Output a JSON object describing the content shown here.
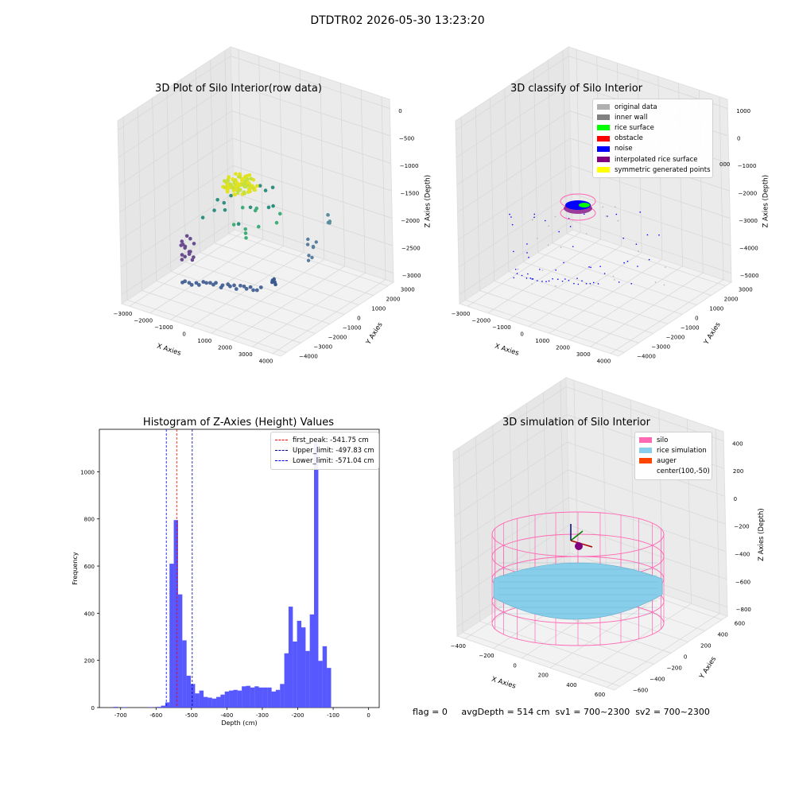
{
  "suptitle": "DTDTR02 2026-05-30 13:23:20",
  "footer": "flag = 0     avgDepth = 514 cm  sv1 = 700~2300  sv2 = 700~2300",
  "colors": {
    "hist_bar": "#4f4fff",
    "first_peak": "#ff0000",
    "upper_limit": "#00008b",
    "lower_limit": "#0000ff",
    "original": "#b0b0b0",
    "inner_wall": "#808080",
    "rice_surface": "#00ff00",
    "obstacle": "#ff0000",
    "noise": "#0000ff",
    "interpolated": "#800080",
    "symmetric": "#ffff00",
    "silo": "#ff69b4",
    "rice_sim": "#87ceeb",
    "auger": "#ff4500"
  },
  "chart_data": [
    {
      "type": "scatter",
      "title": "3D Plot of Silo Interior(row data)",
      "xlabel": "X Axies",
      "ylabel": "Y Axies",
      "zlabel": "Z Axies (Depth)",
      "xticks": [
        "−3000",
        "−2000",
        "−1000",
        "0",
        "1000",
        "2000",
        "3000",
        "4000"
      ],
      "yticks": [
        "3000",
        "2000",
        "1000",
        "0",
        "−1000",
        "−2000",
        "−3000",
        "−4000"
      ],
      "zticks": [
        "0",
        "−500",
        "−1000",
        "−1500",
        "−2000",
        "−2500",
        "−3000"
      ],
      "grid": true
    },
    {
      "type": "scatter",
      "title": "3D classify of Silo Interior",
      "xlabel": "X Axies",
      "ylabel": "Y Axies",
      "zlabel": "Z Axies (Depth)",
      "xticks": [
        "−3000",
        "−2000",
        "−1000",
        "0",
        "1000",
        "2000",
        "3000",
        "4000"
      ],
      "yticks": [
        "3000",
        "2000",
        "1000",
        "0",
        "−1000",
        "−2000",
        "−3000",
        "−4000"
      ],
      "zticks": [
        "1000",
        "0",
        "−1000",
        "−2000",
        "−3000",
        "−4000",
        "−5000"
      ],
      "partial_tick": "000",
      "legend": [
        "original data",
        "inner wall",
        "rice surface",
        "obstacle",
        "noise",
        "interpolated rice surface",
        "symmetric generated points"
      ],
      "legend_placement": "top-right",
      "grid": true
    },
    {
      "type": "bar",
      "title": "Histogram of Z-Axies (Height) Values",
      "xlabel": "Depth (cm)",
      "ylabel": "Frequency",
      "xlim": [
        -760,
        30
      ],
      "ylim": [
        0,
        1180
      ],
      "xticks": [
        -700,
        -600,
        -500,
        -400,
        -300,
        -200,
        -100,
        0
      ],
      "yticks": [
        0,
        200,
        400,
        600,
        800,
        1000
      ],
      "bin_width": 12.2,
      "bins": [
        [
          -720,
          3
        ],
        [
          -695,
          2
        ],
        [
          -620,
          2
        ],
        [
          -598,
          3
        ],
        [
          -586,
          8
        ],
        [
          -574,
          22
        ],
        [
          -562,
          610
        ],
        [
          -550,
          795
        ],
        [
          -538,
          480
        ],
        [
          -526,
          285
        ],
        [
          -514,
          135
        ],
        [
          -502,
          100
        ],
        [
          -490,
          60
        ],
        [
          -478,
          72
        ],
        [
          -466,
          45
        ],
        [
          -454,
          42
        ],
        [
          -442,
          38
        ],
        [
          -430,
          45
        ],
        [
          -418,
          55
        ],
        [
          -406,
          68
        ],
        [
          -394,
          72
        ],
        [
          -382,
          75
        ],
        [
          -370,
          72
        ],
        [
          -358,
          90
        ],
        [
          -346,
          92
        ],
        [
          -334,
          85
        ],
        [
          -322,
          90
        ],
        [
          -310,
          85
        ],
        [
          -298,
          85
        ],
        [
          -286,
          85
        ],
        [
          -274,
          68
        ],
        [
          -262,
          75
        ],
        [
          -250,
          100
        ],
        [
          -238,
          230
        ],
        [
          -226,
          428
        ],
        [
          -214,
          280
        ],
        [
          -202,
          368
        ],
        [
          -190,
          340
        ],
        [
          -178,
          240
        ],
        [
          -166,
          395
        ],
        [
          -154,
          1120
        ],
        [
          -142,
          198
        ],
        [
          -130,
          260
        ],
        [
          -118,
          168
        ]
      ],
      "vlines": [
        {
          "label": "first_peak: -541.75 cm",
          "x": -541.75,
          "color": "#ff0000"
        },
        {
          "label": "Upper_limit: -497.83 cm",
          "x": -497.83,
          "color": "#00008b"
        },
        {
          "label": "Lower_limit: -571.04 cm",
          "x": -571.04,
          "color": "#0000ff"
        }
      ],
      "legend_placement": "top-right"
    },
    {
      "type": "surface",
      "title": "3D simulation of Silo Interior",
      "xlabel": "X Axies",
      "ylabel": "Y Axies",
      "zlabel": "Z Axies (Depth)",
      "xticks": [
        "−400",
        "−200",
        "0",
        "200",
        "400",
        "600"
      ],
      "yticks": [
        "600",
        "400",
        "200",
        "0",
        "−200",
        "−400",
        "−600"
      ],
      "zticks": [
        "400",
        "200",
        "0",
        "−200",
        "−400",
        "−600",
        "−800"
      ],
      "legend": [
        "silo",
        "rice simulation",
        "auger",
        "center(100,-50)"
      ],
      "legend_placement": "top-right",
      "grid": true
    }
  ]
}
